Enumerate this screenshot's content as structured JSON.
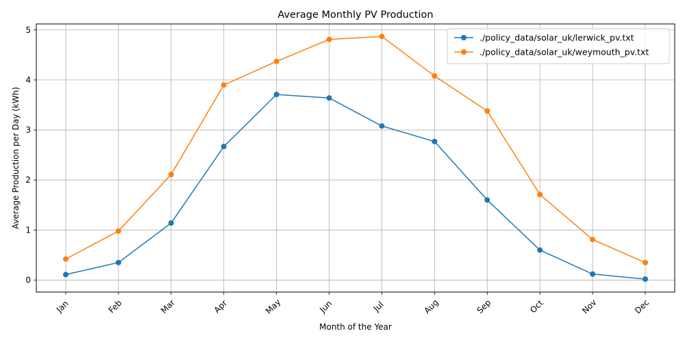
{
  "chart_data": {
    "type": "line",
    "title": "Average Monthly PV Production",
    "xlabel": "Month of the Year",
    "ylabel": "Average Production per Day (kWh)",
    "categories": [
      "Jan",
      "Feb",
      "Mar",
      "Apr",
      "May",
      "Jun",
      "Jul",
      "Aug",
      "Sep",
      "Oct",
      "Nov",
      "Dec"
    ],
    "ylim": [
      -0.24,
      5.12
    ],
    "yticks": [
      0,
      1,
      2,
      3,
      4,
      5
    ],
    "grid": true,
    "legend_position": "top-right",
    "series": [
      {
        "name": "./policy_data/solar_uk/lerwick_pv.txt",
        "color": "#1f77b4",
        "values": [
          0.11,
          0.35,
          1.14,
          2.67,
          3.71,
          3.64,
          3.08,
          2.77,
          1.6,
          0.6,
          0.12,
          0.02
        ]
      },
      {
        "name": "./policy_data/solar_uk/weymouth_pv.txt",
        "color": "#ff7f0e",
        "values": [
          0.42,
          0.98,
          2.11,
          3.9,
          4.37,
          4.81,
          4.87,
          4.08,
          3.38,
          1.71,
          0.81,
          0.35
        ]
      }
    ]
  }
}
